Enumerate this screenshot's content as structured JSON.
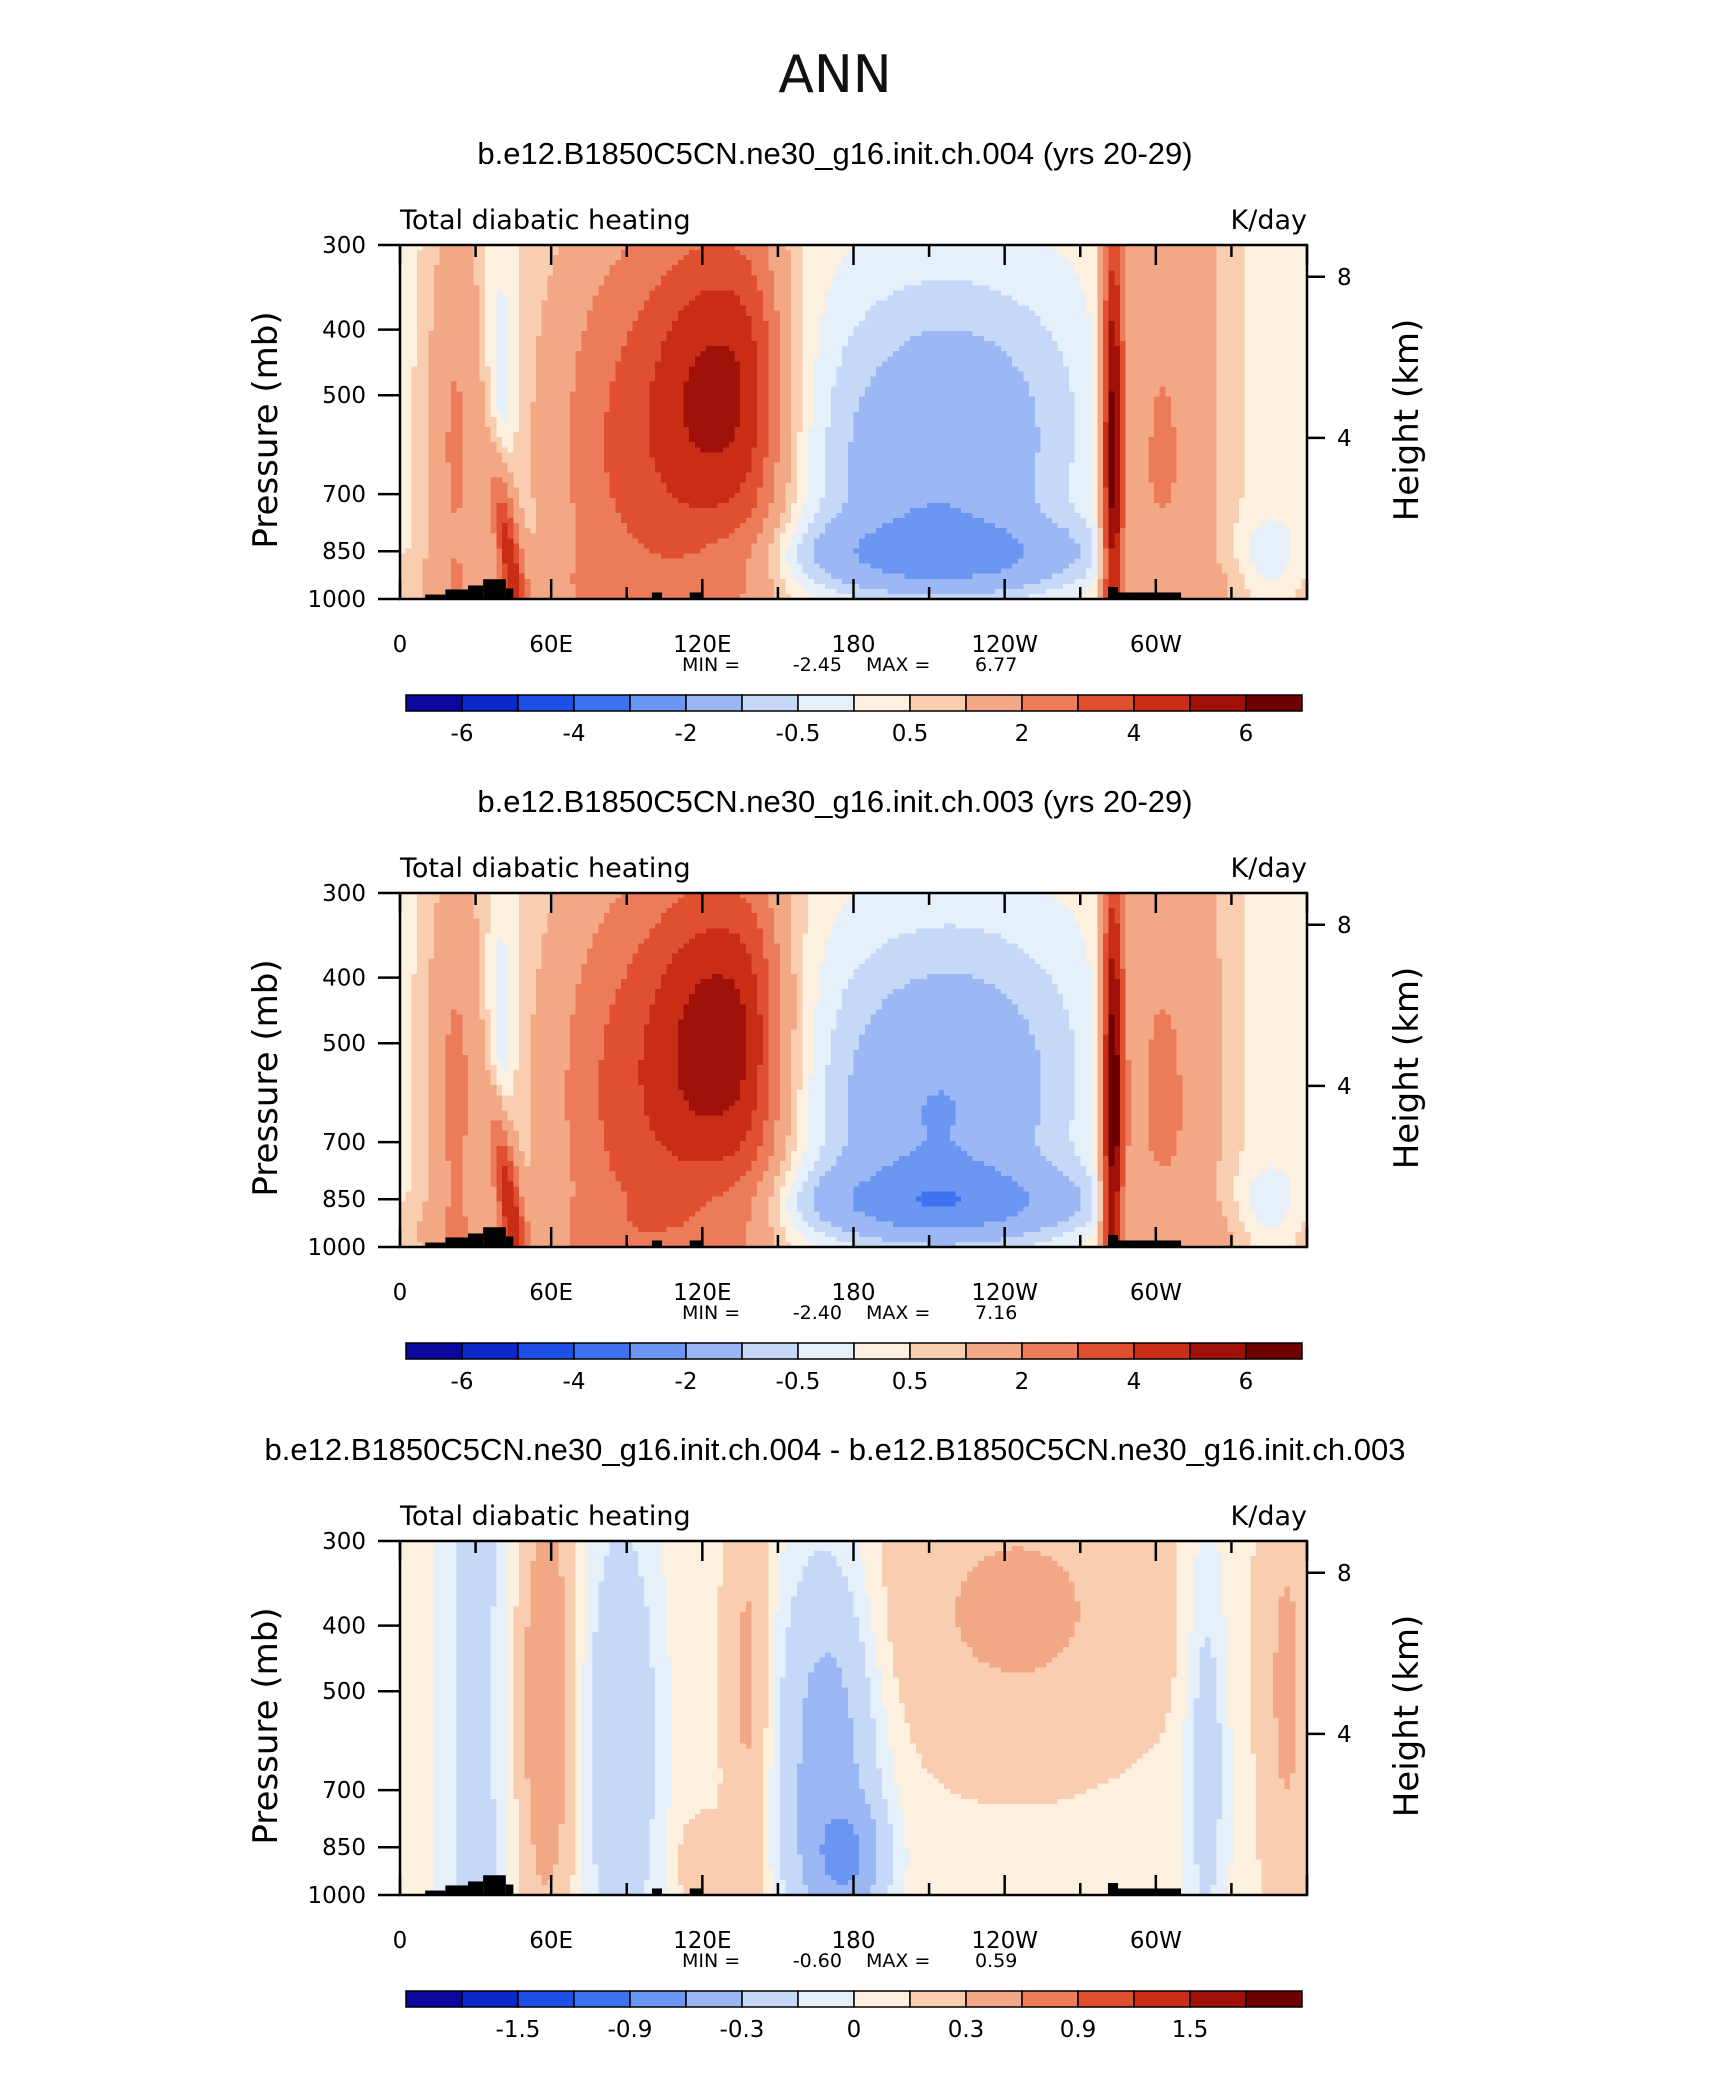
{
  "figure": {
    "title": "ANN"
  },
  "colors": {
    "palette": [
      "#08089e",
      "#0a28c8",
      "#1e4fe6",
      "#3f72f0",
      "#6b96f2",
      "#9bb8f5",
      "#c6d8f8",
      "#e6f0fb",
      "#fdf0df",
      "#f9cdb0",
      "#f3a885",
      "#ec7b5a",
      "#e04f30",
      "#c92d16",
      "#a0110a",
      "#6e0000"
    ],
    "land": "#000000"
  },
  "chart_data": [
    {
      "type": "heatmap",
      "title": "b.e12.B1850C5CN.ne30_g16.init.ch.004 (yrs 20-29)",
      "left_label": "Total diabatic heating",
      "right_label": "K/day",
      "ylabel": "Pressure (mb)",
      "ylabel_right": "Height (km)",
      "yticks": [
        "300",
        "400",
        "500",
        "700",
        "850",
        "1000"
      ],
      "yticks_right": [
        "8",
        "4"
      ],
      "xticks": [
        "0",
        "60E",
        "120E",
        "180",
        "120W",
        "60W"
      ],
      "xlim": [
        0,
        360
      ],
      "ylim": [
        1000,
        300
      ],
      "min_label": "MIN =",
      "min_value": "-2.45",
      "max_label": "MAX =",
      "max_value": "6.77",
      "colorbar_labels": [
        "-6",
        "-4",
        "-2",
        "-0.5",
        "0.5",
        "2",
        "4",
        "6"
      ],
      "colorbar_levels": [
        -6,
        -5,
        -4,
        -3,
        -2,
        -1,
        -0.5,
        0,
        0.5,
        1,
        2,
        3,
        4,
        5,
        6
      ],
      "field_scale": 1.0
    },
    {
      "type": "heatmap",
      "title": "b.e12.B1850C5CN.ne30_g16.init.ch.003 (yrs 20-29)",
      "left_label": "Total diabatic heating",
      "right_label": "K/day",
      "ylabel": "Pressure (mb)",
      "ylabel_right": "Height (km)",
      "yticks": [
        "300",
        "400",
        "500",
        "700",
        "850",
        "1000"
      ],
      "yticks_right": [
        "8",
        "4"
      ],
      "xticks": [
        "0",
        "60E",
        "120E",
        "180",
        "120W",
        "60W"
      ],
      "xlim": [
        0,
        360
      ],
      "ylim": [
        1000,
        300
      ],
      "min_label": "MIN =",
      "min_value": "-2.40",
      "max_label": "MAX =",
      "max_value": "7.16",
      "colorbar_labels": [
        "-6",
        "-4",
        "-2",
        "-0.5",
        "0.5",
        "2",
        "4",
        "6"
      ],
      "colorbar_levels": [
        -6,
        -5,
        -4,
        -3,
        -2,
        -1,
        -0.5,
        0,
        0.5,
        1,
        2,
        3,
        4,
        5,
        6
      ],
      "field_scale": 1.05
    },
    {
      "type": "heatmap",
      "title": "b.e12.B1850C5CN.ne30_g16.init.ch.004 - b.e12.B1850C5CN.ne30_g16.init.ch.003",
      "left_label": "Total diabatic heating",
      "right_label": "K/day",
      "ylabel": "Pressure (mb)",
      "ylabel_right": "Height (km)",
      "yticks": [
        "300",
        "400",
        "500",
        "700",
        "850",
        "1000"
      ],
      "yticks_right": [
        "8",
        "4"
      ],
      "xticks": [
        "0",
        "60E",
        "120E",
        "180",
        "120W",
        "60W"
      ],
      "xlim": [
        0,
        360
      ],
      "ylim": [
        1000,
        300
      ],
      "min_label": "MIN =",
      "min_value": "-0.60",
      "max_label": "MAX =",
      "max_value": "0.59",
      "colorbar_labels": [
        "-1.5",
        "-0.9",
        "-0.3",
        "0",
        "0.3",
        "0.9",
        "1.5"
      ],
      "colorbar_levels": [
        -1.8,
        -1.5,
        -1.2,
        -0.9,
        -0.6,
        -0.3,
        -0.1,
        0,
        0.1,
        0.3,
        0.6,
        0.9,
        1.2,
        1.5,
        1.8
      ],
      "field_scale": 1.0,
      "is_difference": true
    }
  ]
}
